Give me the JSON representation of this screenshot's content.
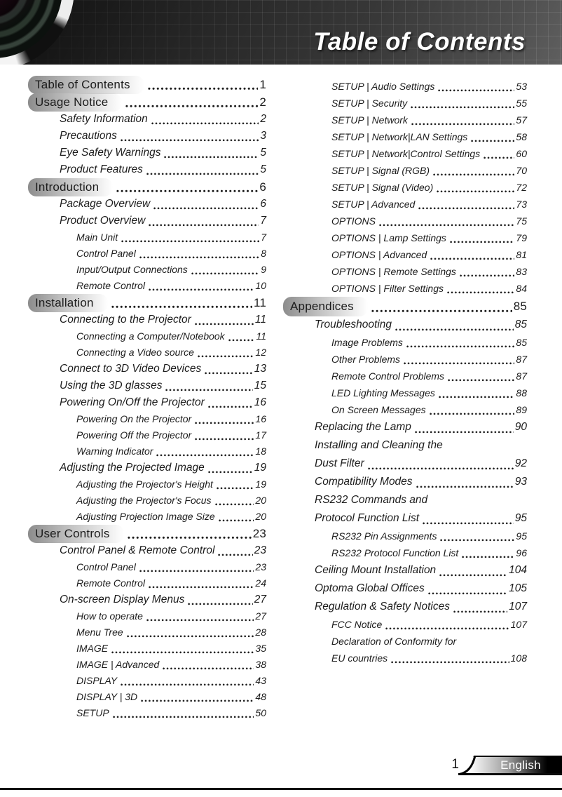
{
  "header": {
    "title": "Table of Contents"
  },
  "toc": {
    "left": [
      {
        "level": 1,
        "label": "Table of Contents",
        "page": "1"
      },
      {
        "level": 1,
        "label": "Usage Notice",
        "page": "2"
      },
      {
        "level": 2,
        "label": "Safety Information",
        "page": "2"
      },
      {
        "level": 2,
        "label": "Precautions",
        "page": "3"
      },
      {
        "level": 2,
        "label": "Eye Safety Warnings",
        "page": "5"
      },
      {
        "level": 2,
        "label": "Product Features",
        "page": "5"
      },
      {
        "level": 1,
        "label": "Introduction",
        "page": "6"
      },
      {
        "level": 2,
        "label": "Package Overview",
        "page": "6"
      },
      {
        "level": 2,
        "label": "Product Overview",
        "page": "7"
      },
      {
        "level": 3,
        "label": "Main Unit",
        "page": "7"
      },
      {
        "level": 3,
        "label": "Control Panel",
        "page": "8"
      },
      {
        "level": 3,
        "label": "Input/Output Connections",
        "page": "9"
      },
      {
        "level": 3,
        "label": "Remote Control",
        "page": "10"
      },
      {
        "level": 1,
        "label": "Installation",
        "page": "11"
      },
      {
        "level": 2,
        "label": "Connecting to the Projector",
        "page": "11"
      },
      {
        "level": 3,
        "label": "Connecting a Computer/Notebook",
        "page": "11"
      },
      {
        "level": 3,
        "label": "Connecting a Video source",
        "page": "12"
      },
      {
        "level": 2,
        "label": "Connect to 3D Video Devices",
        "page": "13"
      },
      {
        "level": 2,
        "label": "Using the 3D glasses",
        "page": "15"
      },
      {
        "level": 2,
        "label": "Powering On/Off the Projector",
        "page": "16"
      },
      {
        "level": 3,
        "label": "Powering On the Projector",
        "page": "16"
      },
      {
        "level": 3,
        "label": "Powering Off the Projector",
        "page": "17"
      },
      {
        "level": 3,
        "label": "Warning Indicator",
        "page": "18"
      },
      {
        "level": 2,
        "label": "Adjusting the Projected Image",
        "page": "19"
      },
      {
        "level": 3,
        "label": "Adjusting the Projector's Height",
        "page": "19"
      },
      {
        "level": 3,
        "label": "Adjusting the Projector's Focus",
        "page": "20"
      },
      {
        "level": 3,
        "label": "Adjusting Projection Image Size",
        "page": "20"
      },
      {
        "level": 1,
        "label": "User Controls",
        "page": "23"
      },
      {
        "level": 2,
        "label": "Control Panel & Remote Control",
        "page": "23"
      },
      {
        "level": 3,
        "label": "Control Panel",
        "page": "23"
      },
      {
        "level": 3,
        "label": "Remote Control",
        "page": "24"
      },
      {
        "level": 2,
        "label": "On-screen Display Menus",
        "page": "27"
      },
      {
        "level": 3,
        "label": "How to operate",
        "page": "27"
      },
      {
        "level": 3,
        "label": "Menu Tree",
        "page": "28"
      },
      {
        "level": 3,
        "label": "IMAGE",
        "page": "35"
      },
      {
        "level": 3,
        "label": "IMAGE | Advanced",
        "page": "38"
      },
      {
        "level": 3,
        "label": "DISPLAY",
        "page": "43"
      },
      {
        "level": 3,
        "label": "DISPLAY | 3D",
        "page": "48"
      },
      {
        "level": 3,
        "label": "SETUP",
        "page": "50"
      }
    ],
    "right": [
      {
        "level": 3,
        "label": "SETUP | Audio Settings",
        "page": "53"
      },
      {
        "level": 3,
        "label": "SETUP | Security",
        "page": "55"
      },
      {
        "level": 3,
        "label": "SETUP | Network",
        "page": "57"
      },
      {
        "level": 3,
        "label": "SETUP | Network|LAN Settings",
        "page": "58"
      },
      {
        "level": 3,
        "label": "SETUP | Network|Control Settings",
        "page": "60"
      },
      {
        "level": 3,
        "label": "SETUP | Signal (RGB)",
        "page": "70"
      },
      {
        "level": 3,
        "label": "SETUP | Signal (Video)",
        "page": "72"
      },
      {
        "level": 3,
        "label": "SETUP | Advanced",
        "page": "73"
      },
      {
        "level": 3,
        "label": "OPTIONS",
        "page": "75"
      },
      {
        "level": 3,
        "label": "OPTIONS | Lamp Settings",
        "page": "79"
      },
      {
        "level": 3,
        "label": "OPTIONS | Advanced",
        "page": "81"
      },
      {
        "level": 3,
        "label": "OPTIONS | Remote Settings",
        "page": "83"
      },
      {
        "level": 3,
        "label": "OPTIONS | Filter Settings",
        "page": "84"
      },
      {
        "level": 1,
        "label": "Appendices",
        "page": "85"
      },
      {
        "level": 2,
        "label": "Troubleshooting",
        "page": "85"
      },
      {
        "level": 3,
        "label": "Image Problems",
        "page": "85"
      },
      {
        "level": 3,
        "label": "Other Problems",
        "page": "87"
      },
      {
        "level": 3,
        "label": "Remote Control Problems",
        "page": "87"
      },
      {
        "level": 3,
        "label": "LED Lighting Messages",
        "page": "88"
      },
      {
        "level": 3,
        "label": "On Screen Messages",
        "page": "89"
      },
      {
        "level": 2,
        "label": "Replacing the Lamp",
        "page": "90"
      },
      {
        "level": 2,
        "label": "Installing and Cleaning the",
        "page": null
      },
      {
        "level": 2,
        "label": "Dust Filter",
        "page": "92"
      },
      {
        "level": 2,
        "label": "Compatibility Modes",
        "page": "93"
      },
      {
        "level": 2,
        "label": "RS232 Commands and",
        "page": null
      },
      {
        "level": 2,
        "label": "Protocol Function List",
        "page": "95"
      },
      {
        "level": 3,
        "label": "RS232 Pin Assignments",
        "page": "95"
      },
      {
        "level": 3,
        "label": "RS232 Protocol Function List",
        "page": "96"
      },
      {
        "level": 2,
        "label": "Ceiling Mount Installation",
        "page": "104"
      },
      {
        "level": 2,
        "label": "Optoma Global Offices",
        "page": "105"
      },
      {
        "level": 2,
        "label": "Regulation & Safety Notices",
        "page": "107"
      },
      {
        "level": 3,
        "label": "FCC Notice",
        "page": "107"
      },
      {
        "level": 3,
        "label": "Declaration of Conformity for",
        "page": null
      },
      {
        "level": 3,
        "label": "EU countries",
        "page": "108"
      }
    ]
  },
  "footer": {
    "page_number": "1",
    "language": "English"
  },
  "colors": {
    "header_dark": "#2e2e2e",
    "section_pill_gray": "#8c8c8c",
    "badge_black": "#000000",
    "text": "#1c1c1c"
  }
}
